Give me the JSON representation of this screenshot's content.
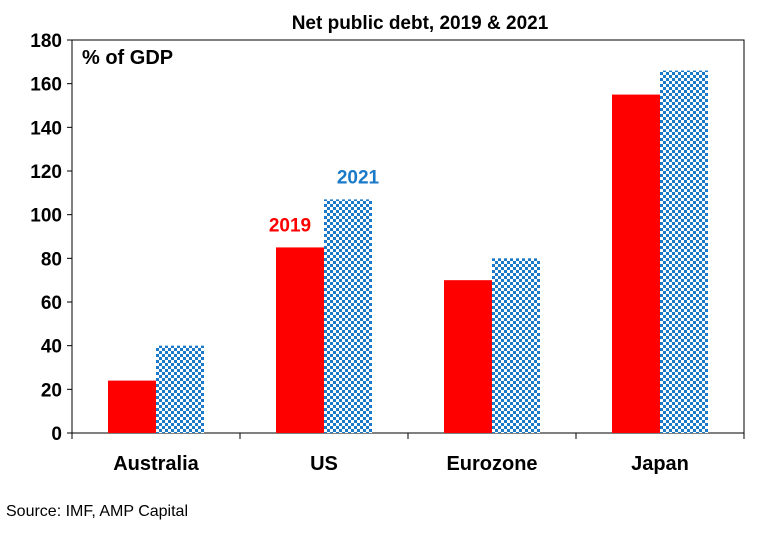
{
  "chart_data": {
    "type": "bar",
    "title": "Net public debt, 2019 & 2021",
    "unit_label": "% of GDP",
    "categories": [
      "Australia",
      "US",
      "Eurozone",
      "Japan"
    ],
    "series": [
      {
        "name": "2019",
        "values": [
          24,
          85,
          70,
          155
        ],
        "color": "#ff0000",
        "pattern": "solid"
      },
      {
        "name": "2021",
        "values": [
          40,
          107,
          80,
          166
        ],
        "color": "#1a7ac8",
        "pattern": "checkerboard"
      }
    ],
    "ylim": [
      0,
      180
    ],
    "yticks": [
      0,
      20,
      40,
      60,
      80,
      100,
      120,
      140,
      160,
      180
    ],
    "grid": false,
    "series_labels_at_category": "US",
    "source": "Source: IMF, AMP Capital"
  }
}
